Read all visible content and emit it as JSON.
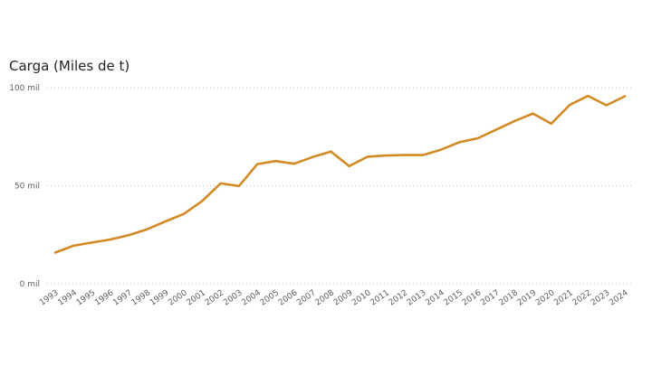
{
  "chart_data": {
    "type": "line",
    "title": "Carga (Miles de t)",
    "xlabel": "",
    "ylabel": "",
    "ylim": [
      0,
      100
    ],
    "y_ticks": [
      "0 mil",
      "50 mil",
      "100 mil"
    ],
    "y_tick_values": [
      0,
      50,
      100
    ],
    "grid": true,
    "legend": null,
    "line_color": "#D28A24",
    "x": [
      "1993",
      "1994",
      "1995",
      "1996",
      "1997",
      "1998",
      "1999",
      "2000",
      "2001",
      "2002",
      "2003",
      "2004",
      "2005",
      "2006",
      "2007",
      "2008",
      "2009",
      "2010",
      "2011",
      "2012",
      "2013",
      "2014",
      "2015",
      "2016",
      "2017",
      "2018",
      "2019",
      "2020",
      "2021",
      "2022",
      "2023",
      "2024"
    ],
    "series": [
      {
        "name": "Carga (Miles de t)",
        "values": [
          15.9,
          19.4,
          21.0,
          22.6,
          24.8,
          27.8,
          31.8,
          35.6,
          42.2,
          51.2,
          49.8,
          61.0,
          62.6,
          61.2,
          64.6,
          67.4,
          60.0,
          64.8,
          65.4,
          65.6,
          65.6,
          68.4,
          72.2,
          74.2,
          78.6,
          83.0,
          86.8,
          81.6,
          91.2,
          95.8,
          91.0,
          95.6
        ]
      }
    ]
  }
}
